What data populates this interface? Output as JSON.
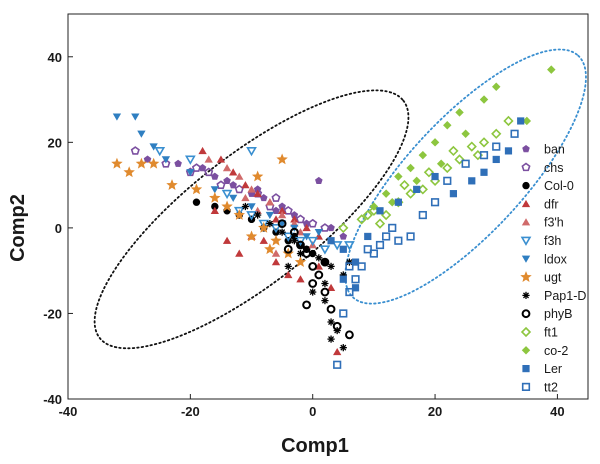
{
  "chart_data": {
    "type": "scatter",
    "title": "",
    "xlabel": "Comp1",
    "ylabel": "Comp2",
    "xlim": [
      -40,
      45
    ],
    "ylim": [
      -40,
      50
    ],
    "xticks": [
      -40,
      -20,
      0,
      20,
      40
    ],
    "yticks": [
      -40,
      -20,
      0,
      20,
      40
    ],
    "x_tick_labels": [
      "-40",
      "-20",
      "0",
      "20",
      "40"
    ],
    "y_tick_labels": [
      "-40",
      "-20",
      "0",
      "20",
      "40"
    ],
    "legend_position": "right",
    "colors": {
      "axis": "#222222",
      "ellipse_left": "#111111",
      "ellipse_right": "#3a8fd0"
    },
    "annotations": [
      {
        "type": "dotted-ellipse",
        "color": "#111111",
        "cx": -10,
        "cy": 2,
        "rx": 31.5,
        "ry": 15,
        "angle_deg": -38
      },
      {
        "type": "dotted-ellipse",
        "color": "#3a8fd0",
        "cx": 25,
        "cy": 12,
        "rx": 27,
        "ry": 13.5,
        "angle_deg": -47
      }
    ],
    "series": [
      {
        "name": "ban",
        "marker": "pentagon-filled",
        "color": "#7b4fa0",
        "points": [
          [
            -27,
            16
          ],
          [
            -22,
            15
          ],
          [
            -18,
            14
          ],
          [
            -16,
            12
          ],
          [
            -13,
            10
          ],
          [
            -10,
            8
          ],
          [
            -8,
            7
          ],
          [
            -5,
            5
          ],
          [
            -3,
            3
          ],
          [
            -1,
            1
          ],
          [
            1,
            11
          ],
          [
            3,
            0
          ],
          [
            5,
            -2
          ],
          [
            -6,
            4
          ],
          [
            -9,
            9
          ],
          [
            -14,
            11
          ]
        ]
      },
      {
        "name": "chs",
        "marker": "pentagon-open",
        "color": "#7b4fa0",
        "points": [
          [
            -29,
            18
          ],
          [
            -24,
            15
          ],
          [
            -20,
            13
          ],
          [
            -17,
            13
          ],
          [
            -15,
            10
          ],
          [
            -12,
            9
          ],
          [
            -9,
            8
          ],
          [
            -6,
            7
          ],
          [
            -4,
            4
          ],
          [
            -2,
            2
          ],
          [
            0,
            1
          ],
          [
            2,
            0
          ],
          [
            -19,
            14
          ],
          [
            -7,
            5
          ]
        ]
      },
      {
        "name": "Col-0",
        "marker": "circle-filled",
        "color": "#000000",
        "points": [
          [
            -19,
            6
          ],
          [
            -16,
            5
          ],
          [
            -14,
            4
          ],
          [
            -12,
            3
          ],
          [
            -10,
            2
          ],
          [
            -8,
            0
          ],
          [
            -6,
            -1
          ],
          [
            -4,
            -3
          ],
          [
            -2,
            -4
          ],
          [
            0,
            -6
          ],
          [
            2,
            -8
          ],
          [
            -3,
            -2
          ],
          [
            -1,
            -5
          ]
        ]
      },
      {
        "name": "dfr",
        "marker": "triangle-up-filled",
        "color": "#c0393b",
        "points": [
          [
            -18,
            18
          ],
          [
            -15,
            16
          ],
          [
            -13,
            13
          ],
          [
            -11,
            10
          ],
          [
            -9,
            8
          ],
          [
            -7,
            6
          ],
          [
            -5,
            4
          ],
          [
            -3,
            2
          ],
          [
            -1,
            0
          ],
          [
            1,
            -2
          ],
          [
            -8,
            -3
          ],
          [
            -6,
            -8
          ],
          [
            -10,
            -2
          ],
          [
            -14,
            -3
          ],
          [
            -4,
            -11
          ],
          [
            -2,
            -12
          ],
          [
            4,
            -29
          ],
          [
            3,
            -14
          ],
          [
            1,
            -9
          ],
          [
            -12,
            -6
          ],
          [
            -16,
            4
          ],
          [
            -6,
            2
          ]
        ]
      },
      {
        "name": "f3'h",
        "marker": "triangle-up-filled",
        "color": "#d06a6a",
        "points": [
          [
            -17,
            16
          ],
          [
            -14,
            14
          ],
          [
            -12,
            12
          ],
          [
            -10,
            9
          ],
          [
            -7,
            6
          ],
          [
            -5,
            3
          ],
          [
            -3,
            1
          ],
          [
            -9,
            4
          ],
          [
            -11,
            7
          ],
          [
            -2,
            -1
          ],
          [
            0,
            -4
          ],
          [
            -6,
            -6
          ]
        ]
      },
      {
        "name": "f3h",
        "marker": "triangle-down-open",
        "color": "#3a8fd0",
        "points": [
          [
            -25,
            18
          ],
          [
            -20,
            16
          ],
          [
            -10,
            18
          ],
          [
            -14,
            8
          ],
          [
            -12,
            4
          ],
          [
            -10,
            3
          ],
          [
            -8,
            1
          ],
          [
            -6,
            0
          ],
          [
            -4,
            -2
          ],
          [
            -2,
            -3
          ],
          [
            0,
            -3
          ],
          [
            2,
            -5
          ],
          [
            4,
            -4
          ],
          [
            6,
            -4
          ]
        ]
      },
      {
        "name": "ldox",
        "marker": "triangle-down-filled",
        "color": "#2f7fc1",
        "points": [
          [
            -32,
            26
          ],
          [
            -29,
            26
          ],
          [
            -28,
            22
          ],
          [
            -26,
            19
          ],
          [
            -24,
            16
          ],
          [
            -20,
            13
          ],
          [
            -16,
            9
          ],
          [
            -13,
            7
          ],
          [
            -10,
            5
          ],
          [
            -7,
            3
          ],
          [
            -5,
            1
          ],
          [
            -3,
            0
          ],
          [
            -1,
            -2
          ],
          [
            1,
            -1
          ]
        ]
      },
      {
        "name": "ugt",
        "marker": "star-filled",
        "color": "#e08a2e",
        "points": [
          [
            -32,
            15
          ],
          [
            -30,
            13
          ],
          [
            -28,
            15
          ],
          [
            -26,
            15
          ],
          [
            -23,
            10
          ],
          [
            -19,
            9
          ],
          [
            -16,
            7
          ],
          [
            -14,
            5
          ],
          [
            -12,
            3
          ],
          [
            -9,
            12
          ],
          [
            -5,
            16
          ],
          [
            -8,
            0
          ],
          [
            -6,
            -3
          ],
          [
            -4,
            -6
          ],
          [
            -2,
            -8
          ],
          [
            -10,
            -2
          ],
          [
            -7,
            -5
          ]
        ]
      },
      {
        "name": "Pap1-D",
        "marker": "asterisk",
        "color": "#000000",
        "points": [
          [
            -11,
            5
          ],
          [
            -9,
            3
          ],
          [
            -7,
            1
          ],
          [
            -5,
            -1
          ],
          [
            -3,
            -3
          ],
          [
            -1,
            -5
          ],
          [
            1,
            -7
          ],
          [
            3,
            -9
          ],
          [
            5,
            -11
          ],
          [
            2,
            -13
          ],
          [
            0,
            -15
          ],
          [
            2,
            -17
          ],
          [
            3,
            -22
          ],
          [
            4,
            -24
          ],
          [
            3,
            -26
          ],
          [
            5,
            -28
          ],
          [
            -2,
            -6
          ],
          [
            -4,
            -9
          ],
          [
            6,
            -8
          ]
        ]
      },
      {
        "name": "phyB",
        "marker": "circle-open",
        "color": "#000000",
        "points": [
          [
            -5,
            1
          ],
          [
            -3,
            -1
          ],
          [
            -2,
            -4
          ],
          [
            -1,
            -6
          ],
          [
            0,
            -9
          ],
          [
            1,
            -11
          ],
          [
            0,
            -13
          ],
          [
            2,
            -15
          ],
          [
            -1,
            -18
          ],
          [
            3,
            -19
          ],
          [
            6,
            -25
          ],
          [
            4,
            -23
          ],
          [
            2,
            -8
          ],
          [
            -4,
            -5
          ]
        ]
      },
      {
        "name": "ft1",
        "marker": "diamond-open",
        "color": "#8dc63f",
        "points": [
          [
            5,
            0
          ],
          [
            8,
            2
          ],
          [
            10,
            4
          ],
          [
            12,
            3
          ],
          [
            14,
            6
          ],
          [
            16,
            8
          ],
          [
            18,
            9
          ],
          [
            20,
            11
          ],
          [
            22,
            14
          ],
          [
            24,
            16
          ],
          [
            26,
            19
          ],
          [
            28,
            20
          ],
          [
            30,
            22
          ],
          [
            32,
            25
          ],
          [
            15,
            10
          ],
          [
            19,
            13
          ],
          [
            23,
            18
          ],
          [
            27,
            17
          ],
          [
            9,
            3
          ],
          [
            11,
            1
          ]
        ]
      },
      {
        "name": "co-2",
        "marker": "diamond-filled",
        "color": "#8dc63f",
        "points": [
          [
            10,
            5
          ],
          [
            12,
            8
          ],
          [
            14,
            12
          ],
          [
            16,
            14
          ],
          [
            18,
            17
          ],
          [
            20,
            20
          ],
          [
            22,
            24
          ],
          [
            24,
            27
          ],
          [
            28,
            30
          ],
          [
            30,
            33
          ],
          [
            35,
            25
          ],
          [
            39,
            37
          ],
          [
            13,
            6
          ],
          [
            17,
            11
          ],
          [
            21,
            15
          ],
          [
            25,
            22
          ]
        ]
      },
      {
        "name": "Ler",
        "marker": "square-filled",
        "color": "#2f6fb8",
        "points": [
          [
            3,
            -3
          ],
          [
            5,
            -5
          ],
          [
            7,
            -8
          ],
          [
            9,
            -2
          ],
          [
            11,
            4
          ],
          [
            14,
            6
          ],
          [
            17,
            9
          ],
          [
            20,
            12
          ],
          [
            23,
            8
          ],
          [
            26,
            11
          ],
          [
            28,
            13
          ],
          [
            30,
            16
          ],
          [
            32,
            18
          ],
          [
            34,
            25
          ],
          [
            7,
            -14
          ],
          [
            5,
            -12
          ]
        ]
      },
      {
        "name": "tt2",
        "marker": "square-open",
        "color": "#2f6fb8",
        "points": [
          [
            4,
            -32
          ],
          [
            5,
            -20
          ],
          [
            6,
            -15
          ],
          [
            7,
            -12
          ],
          [
            8,
            -9
          ],
          [
            10,
            -6
          ],
          [
            11,
            -4
          ],
          [
            12,
            -2
          ],
          [
            13,
            0
          ],
          [
            14,
            -3
          ],
          [
            16,
            -2
          ],
          [
            18,
            3
          ],
          [
            20,
            6
          ],
          [
            22,
            11
          ],
          [
            25,
            15
          ],
          [
            28,
            17
          ],
          [
            30,
            19
          ],
          [
            33,
            22
          ],
          [
            9,
            -5
          ],
          [
            6,
            -9
          ]
        ]
      }
    ]
  }
}
